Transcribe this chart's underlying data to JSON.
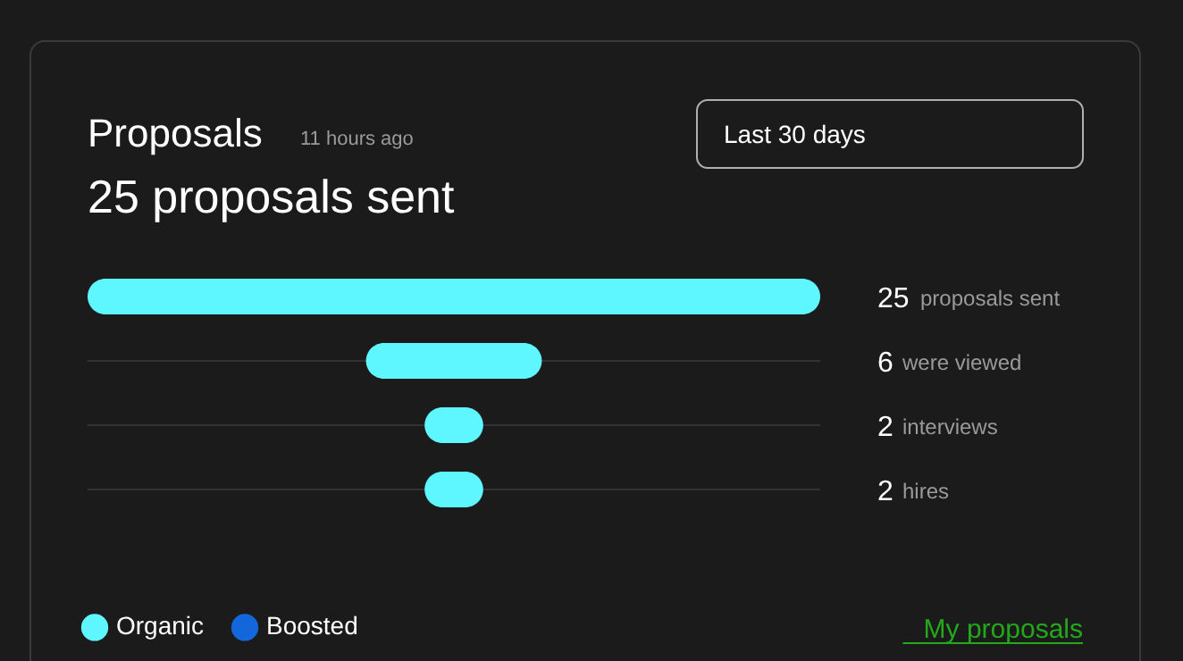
{
  "chart_data": {
    "type": "other",
    "title": "Proposals",
    "subtitle": "11 hours ago",
    "annotations": [
      "25 proposals sent",
      "Last 30 days",
      "My proposals"
    ],
    "categories": [
      "proposals sent",
      "were viewed",
      "interviews",
      "hires"
    ],
    "series": [
      {
        "name": "Organic",
        "color": "#5ef6ff",
        "values": [
          25,
          6,
          2,
          2
        ]
      },
      {
        "name": "Boosted",
        "color": "#1466db",
        "values": [
          null,
          null,
          null,
          null
        ]
      }
    ],
    "data_labels": true,
    "legend": "bottom left"
  }
}
